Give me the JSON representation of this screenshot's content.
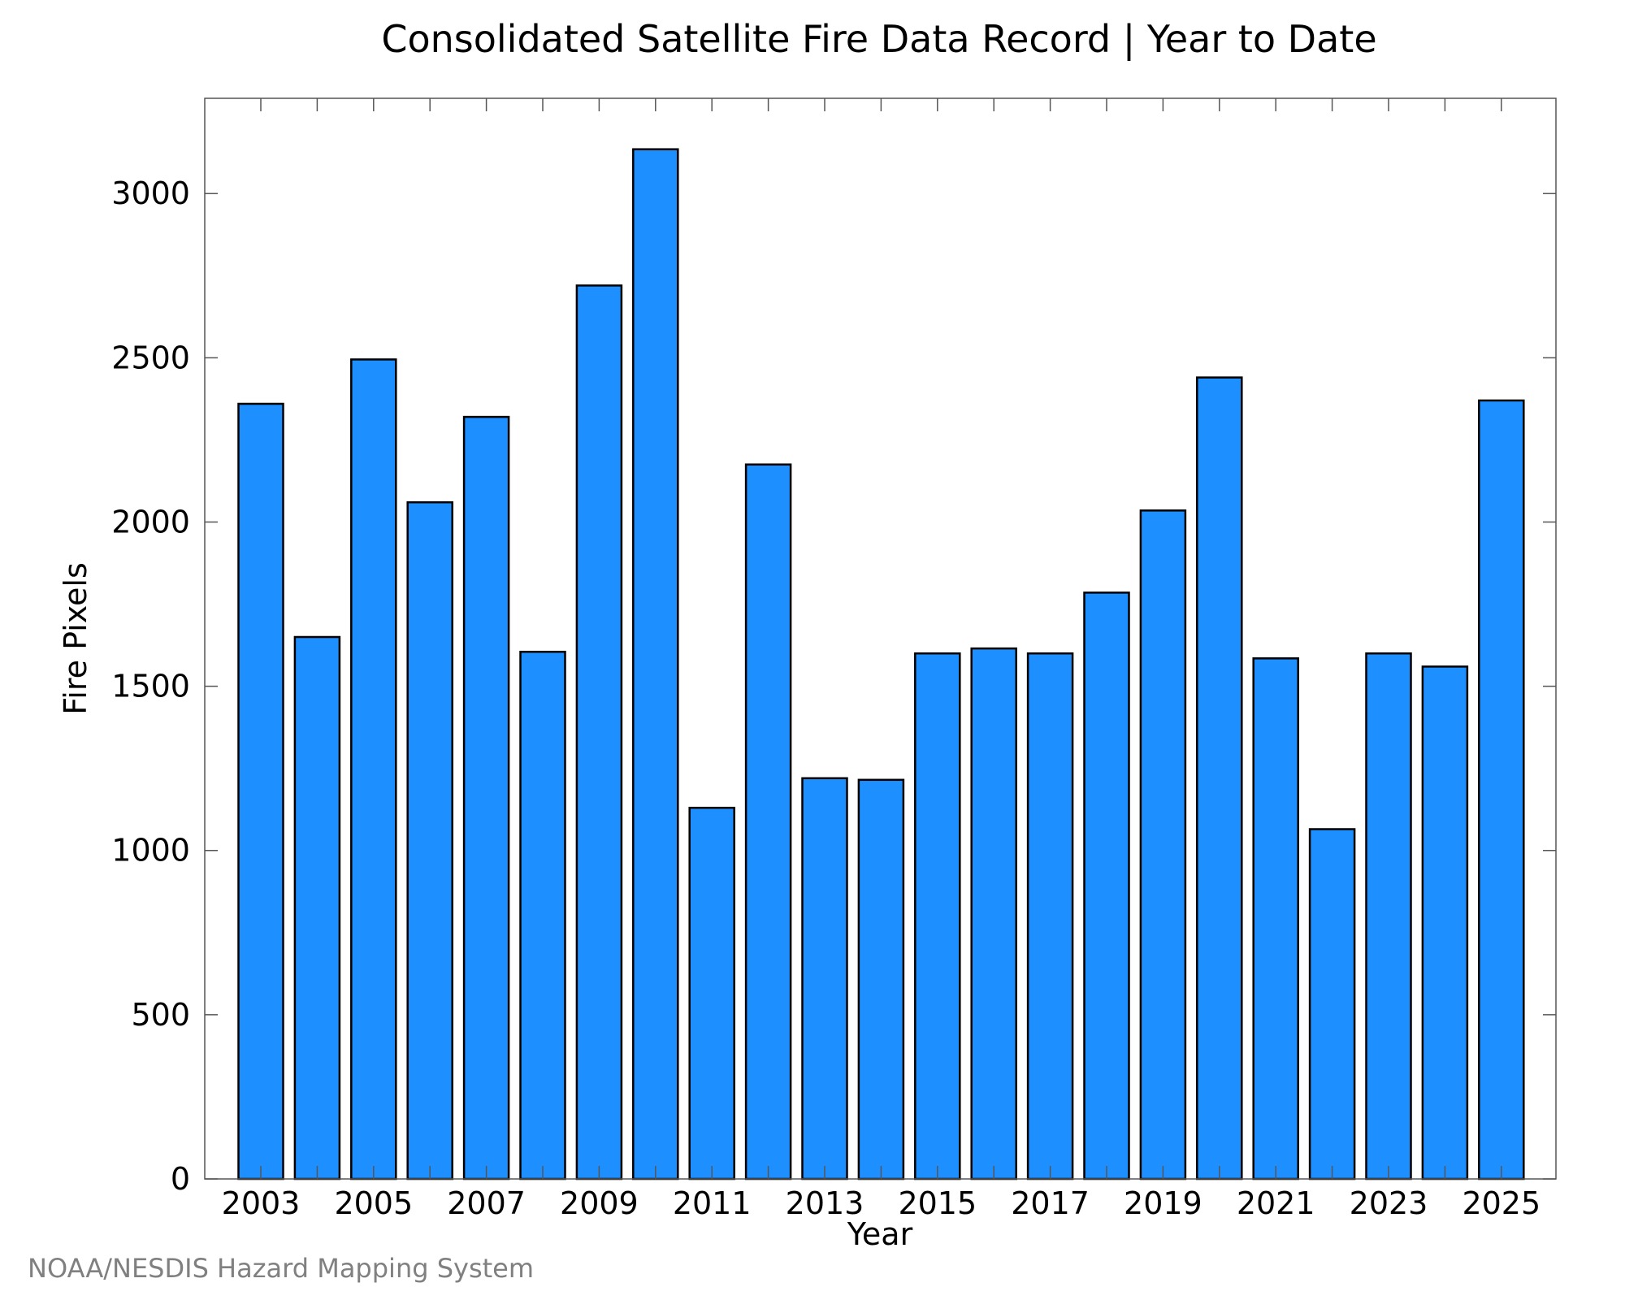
{
  "chart_data": {
    "type": "bar",
    "title": "Consolidated Satellite Fire Data Record | Year to Date",
    "xlabel": "Year",
    "ylabel": "Fire Pixels",
    "categories": [
      "2003",
      "2004",
      "2005",
      "2006",
      "2007",
      "2008",
      "2009",
      "2010",
      "2011",
      "2012",
      "2013",
      "2014",
      "2015",
      "2016",
      "2017",
      "2018",
      "2019",
      "2020",
      "2021",
      "2022",
      "2023",
      "2024",
      "2025"
    ],
    "values": [
      2360,
      1650,
      2495,
      2060,
      2320,
      1605,
      2720,
      3135,
      1130,
      2175,
      1220,
      1215,
      1600,
      1615,
      1600,
      1785,
      2035,
      2440,
      1585,
      1065,
      1600,
      1560,
      2370
    ],
    "x_tick_labels": [
      "2003",
      "2005",
      "2007",
      "2009",
      "2011",
      "2013",
      "2015",
      "2017",
      "2019",
      "2021",
      "2023",
      "2025"
    ],
    "y_tick_labels": [
      "0",
      "500",
      "1000",
      "1500",
      "2000",
      "2500",
      "3000"
    ],
    "y_ticks": [
      0,
      500,
      1000,
      1500,
      2000,
      2500,
      3000
    ],
    "ylim": [
      0,
      3290
    ],
    "grid": false,
    "legend": "none",
    "bar_color": "#1e8fff",
    "bar_edge_color": "#000000"
  },
  "credit": "NOAA/NESDIS Hazard Mapping System"
}
